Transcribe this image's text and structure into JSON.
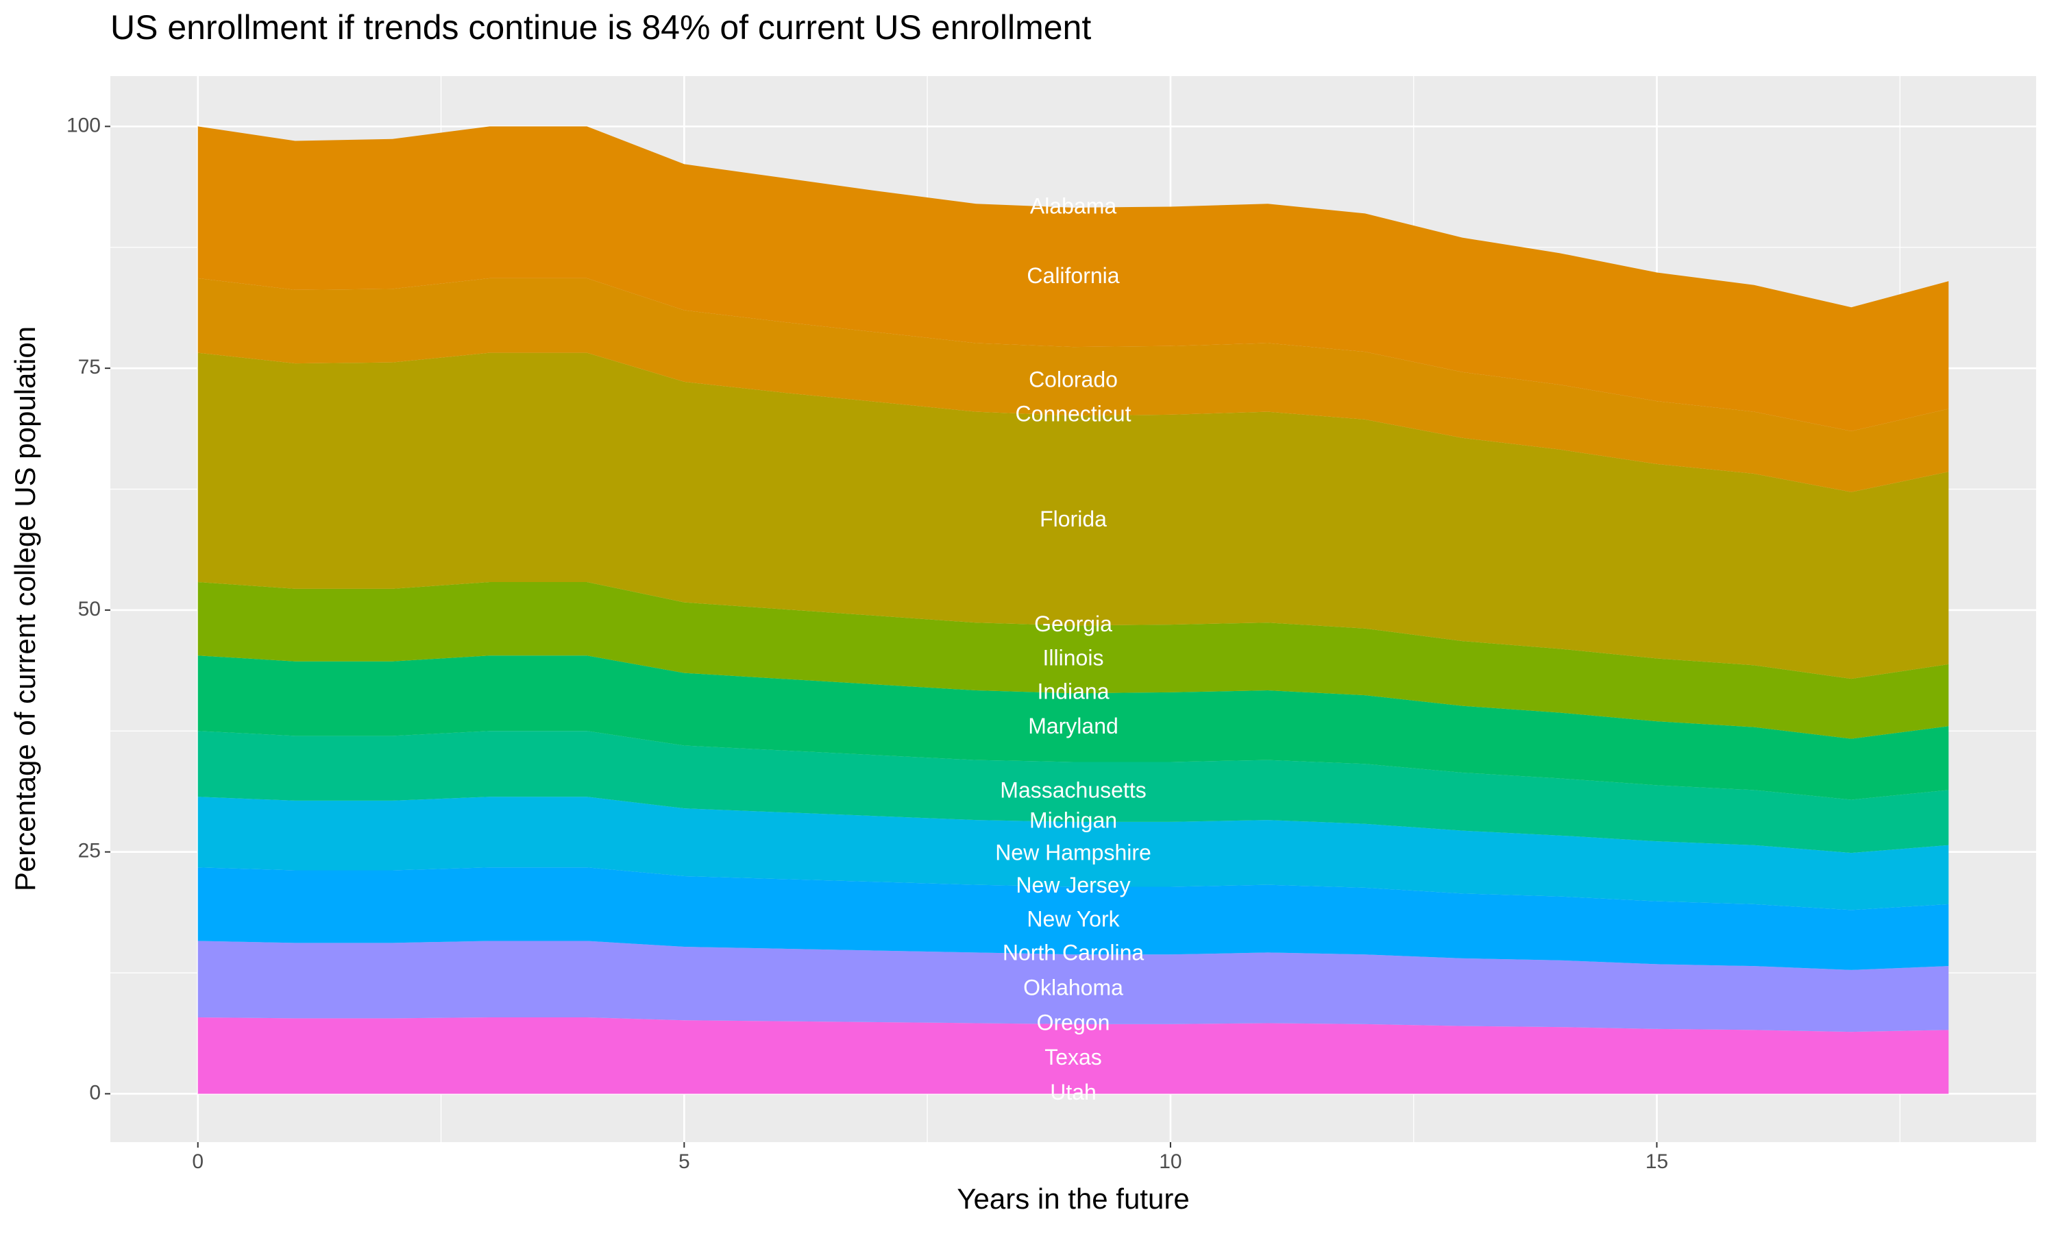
{
  "chart_data": {
    "type": "area",
    "stacked": true,
    "title": "US enrollment if trends continue is 84% of current US enrollment",
    "x_label": "Years in the future",
    "y_label": "Percentage of current college US population",
    "x": [
      0,
      1,
      2,
      3,
      4,
      5,
      6,
      7,
      8,
      9,
      10,
      11,
      12,
      13,
      14,
      15,
      16,
      17,
      18
    ],
    "xlim": [
      -0.9,
      18.9
    ],
    "xticks": [
      0,
      5,
      10,
      15
    ],
    "ylim": [
      -5,
      105.2
    ],
    "yticks": [
      0,
      25,
      50,
      75,
      100
    ],
    "grid": true,
    "series": [
      {
        "name": "Alabama",
        "color": "#F8766D",
        "values": [
          0,
          0,
          0,
          0,
          0,
          0,
          0,
          0,
          0,
          0,
          0,
          0,
          0,
          0,
          0,
          0,
          0,
          0,
          0
        ]
      },
      {
        "name": "California",
        "color": "#E08B00",
        "values": [
          15.7,
          15.4,
          15.5,
          15.7,
          15.7,
          15.1,
          14.9,
          14.6,
          14.4,
          14.4,
          14.4,
          14.4,
          14.3,
          13.9,
          13.6,
          13.3,
          13.1,
          12.8,
          13.2
        ]
      },
      {
        "name": "Colorado",
        "color": "#D89000",
        "values": [
          7.7,
          7.6,
          7.6,
          7.7,
          7.7,
          7.4,
          7.3,
          7.2,
          7.1,
          7.1,
          7.1,
          7.1,
          7.0,
          6.8,
          6.7,
          6.5,
          6.4,
          6.3,
          6.5
        ]
      },
      {
        "name": "Connecticut",
        "color": "#C09B00",
        "values": [
          0,
          0,
          0,
          0,
          0,
          0,
          0,
          0,
          0,
          0,
          0,
          0,
          0,
          0,
          0,
          0,
          0,
          0,
          0
        ]
      },
      {
        "name": "Florida",
        "color": "#B3A000",
        "values": [
          23.7,
          23.3,
          23.4,
          23.7,
          23.7,
          22.8,
          22.4,
          22.1,
          21.8,
          21.7,
          21.7,
          21.8,
          21.6,
          21.0,
          20.6,
          20.1,
          19.8,
          19.3,
          19.9
        ]
      },
      {
        "name": "Georgia",
        "color": "#9DA700",
        "values": [
          0,
          0,
          0,
          0,
          0,
          0,
          0,
          0,
          0,
          0,
          0,
          0,
          0,
          0,
          0,
          0,
          0,
          0,
          0
        ]
      },
      {
        "name": "Illinois",
        "color": "#7CAE00",
        "values": [
          7.6,
          7.5,
          7.5,
          7.6,
          7.6,
          7.3,
          7.2,
          7.1,
          7.0,
          7.0,
          7.0,
          7.0,
          6.9,
          6.7,
          6.6,
          6.5,
          6.4,
          6.2,
          6.4
        ]
      },
      {
        "name": "Indiana",
        "color": "#49B500",
        "values": [
          0,
          0,
          0,
          0,
          0,
          0,
          0,
          0,
          0,
          0,
          0,
          0,
          0,
          0,
          0,
          0,
          0,
          0,
          0
        ]
      },
      {
        "name": "Maryland",
        "color": "#00BE6A",
        "values": [
          7.8,
          7.7,
          7.7,
          7.8,
          7.8,
          7.5,
          7.4,
          7.3,
          7.2,
          7.1,
          7.2,
          7.2,
          7.1,
          6.9,
          6.8,
          6.6,
          6.5,
          6.3,
          6.6
        ]
      },
      {
        "name": "Massachusetts",
        "color": "#00C08B",
        "values": [
          6.8,
          6.7,
          6.7,
          6.8,
          6.8,
          6.5,
          6.4,
          6.3,
          6.2,
          6.2,
          6.2,
          6.2,
          6.2,
          6.0,
          5.9,
          5.8,
          5.7,
          5.5,
          5.7
        ]
      },
      {
        "name": "Michigan",
        "color": "#00BFC4",
        "values": [
          0,
          0,
          0,
          0,
          0,
          0,
          0,
          0,
          0,
          0,
          0,
          0,
          0,
          0,
          0,
          0,
          0,
          0,
          0
        ]
      },
      {
        "name": "New Hampshire",
        "color": "#00B8E5",
        "values": [
          7.3,
          7.2,
          7.2,
          7.3,
          7.3,
          7.0,
          6.9,
          6.8,
          6.7,
          6.7,
          6.7,
          6.7,
          6.6,
          6.5,
          6.3,
          6.2,
          6.1,
          5.9,
          6.1
        ]
      },
      {
        "name": "New Jersey",
        "color": "#00B0F6",
        "values": [
          0,
          0,
          0,
          0,
          0,
          0,
          0,
          0,
          0,
          0,
          0,
          0,
          0,
          0,
          0,
          0,
          0,
          0,
          0
        ]
      },
      {
        "name": "New York",
        "color": "#00A9FF",
        "values": [
          7.6,
          7.5,
          7.5,
          7.6,
          7.6,
          7.3,
          7.2,
          7.1,
          7.0,
          7.0,
          7.0,
          7.0,
          6.9,
          6.7,
          6.6,
          6.5,
          6.4,
          6.2,
          6.4
        ]
      },
      {
        "name": "North Carolina",
        "color": "#7997FF",
        "values": [
          0,
          0,
          0,
          0,
          0,
          0,
          0,
          0,
          0,
          0,
          0,
          0,
          0,
          0,
          0,
          0,
          0,
          0,
          0
        ]
      },
      {
        "name": "Oklahoma",
        "color": "#9590FF",
        "values": [
          7.9,
          7.8,
          7.8,
          7.9,
          7.9,
          7.6,
          7.5,
          7.4,
          7.3,
          7.2,
          7.2,
          7.3,
          7.2,
          7.0,
          6.9,
          6.7,
          6.6,
          6.4,
          6.6
        ]
      },
      {
        "name": "Oregon",
        "color": "#C77CFF",
        "values": [
          0,
          0,
          0,
          0,
          0,
          0,
          0,
          0,
          0,
          0,
          0,
          0,
          0,
          0,
          0,
          0,
          0,
          0,
          0
        ]
      },
      {
        "name": "Texas",
        "color": "#F863DF",
        "values": [
          7.9,
          7.8,
          7.8,
          7.9,
          7.9,
          7.6,
          7.5,
          7.4,
          7.3,
          7.2,
          7.2,
          7.3,
          7.2,
          7.0,
          6.9,
          6.7,
          6.6,
          6.4,
          6.6
        ]
      },
      {
        "name": "Utah",
        "color": "#FF64B0",
        "values": [
          0,
          0,
          0,
          0,
          0,
          0,
          0,
          0,
          0,
          0,
          0,
          0,
          0,
          0,
          0,
          0,
          0,
          0,
          0
        ]
      }
    ]
  }
}
